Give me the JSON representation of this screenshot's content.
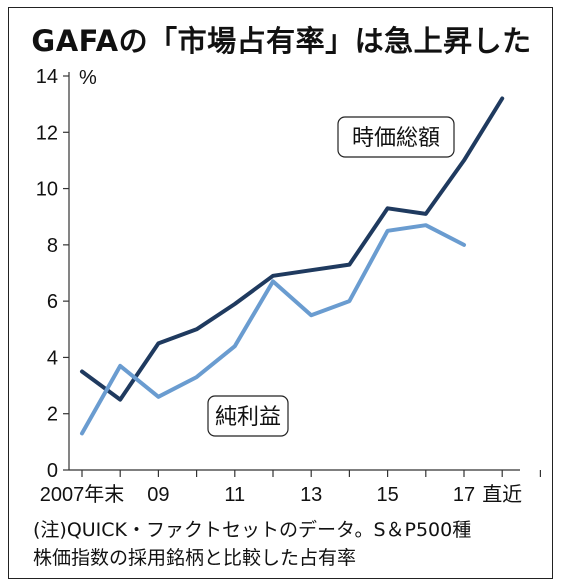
{
  "chart_data": {
    "type": "line",
    "title": "GAFAの「市場占有率」は急上昇した",
    "yunit": "%",
    "ylim": [
      0,
      14
    ],
    "yticks": [
      0,
      2,
      4,
      6,
      8,
      10,
      12,
      14
    ],
    "x_slots": 13,
    "xtick_labels": [
      {
        "slot": 0,
        "label": "2007年末"
      },
      {
        "slot": 2,
        "label": "09"
      },
      {
        "slot": 4,
        "label": "11"
      },
      {
        "slot": 6,
        "label": "13"
      },
      {
        "slot": 8,
        "label": "15"
      },
      {
        "slot": 10,
        "label": "17"
      },
      {
        "slot": 11,
        "label": "直近"
      }
    ],
    "series": [
      {
        "name": "時価総額",
        "color": "#1f3a5f",
        "x": [
          0,
          1,
          2,
          3,
          4,
          5,
          6,
          7,
          8,
          9,
          10,
          11
        ],
        "values": [
          3.5,
          2.5,
          4.5,
          5.0,
          5.9,
          6.9,
          7.1,
          7.3,
          9.3,
          9.1,
          11.0,
          13.2
        ]
      },
      {
        "name": "純利益",
        "color": "#6a9cd0",
        "x": [
          0,
          1,
          2,
          3,
          4,
          5,
          6,
          7,
          8,
          9,
          10
        ],
        "values": [
          1.3,
          3.7,
          2.6,
          3.3,
          4.4,
          6.7,
          5.5,
          6.0,
          8.5,
          8.7,
          8.0
        ]
      }
    ],
    "grid": false,
    "note_line1": "(注)QUICK・ファクトセットのデータ。S＆P500種",
    "note_line2": "株価指数の採用銘柄と比較した占有率"
  }
}
